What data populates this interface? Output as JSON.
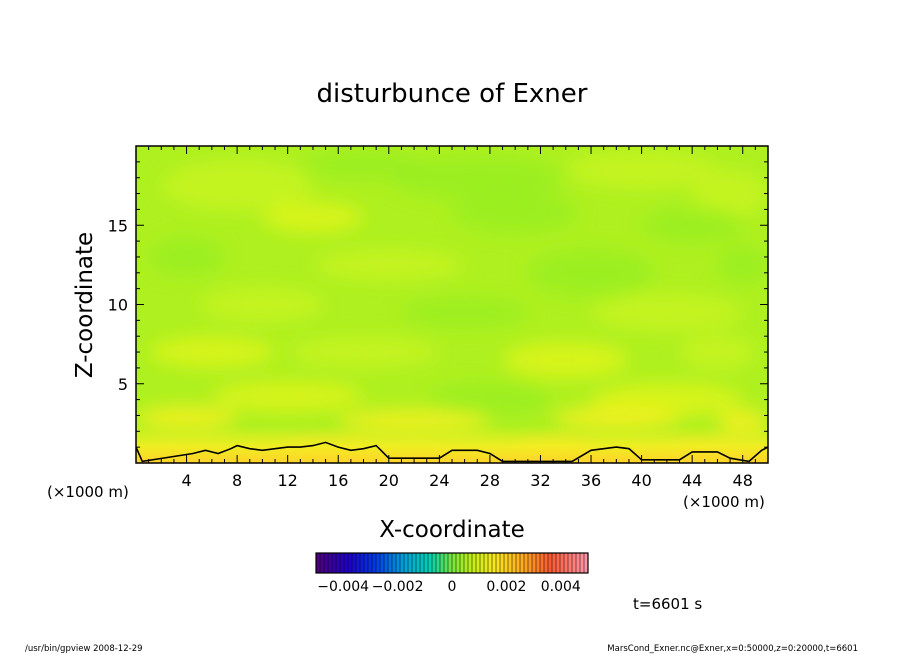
{
  "chart_data": {
    "type": "heatmap",
    "title": "disturbunce of Exner",
    "xlabel": "X-coordinate",
    "ylabel": "Z-coordinate",
    "x_unit": "(×1000 m)",
    "x_unit_left": "(×1000 m)",
    "xlim": [
      0,
      50
    ],
    "ylim": [
      0,
      20
    ],
    "x_ticks": [
      4,
      8,
      12,
      16,
      20,
      24,
      28,
      32,
      36,
      40,
      44,
      48
    ],
    "y_ticks": [
      5,
      10,
      15
    ],
    "zero_contour": {
      "x": [
        0,
        0.5,
        4.5,
        5.5,
        6.5,
        7.5,
        8,
        9,
        10,
        11,
        12,
        13,
        14,
        15,
        16,
        17,
        18,
        19,
        20,
        24,
        25,
        27,
        28,
        29,
        34.5,
        36,
        38,
        39,
        40,
        43,
        44,
        46,
        47,
        48.5,
        49.5,
        50
      ],
      "z": [
        1.0,
        0.1,
        0.6,
        0.8,
        0.6,
        0.9,
        1.1,
        0.9,
        0.8,
        0.9,
        1.0,
        1.0,
        1.1,
        1.3,
        1.0,
        0.8,
        0.9,
        1.1,
        0.3,
        0.3,
        0.8,
        0.8,
        0.6,
        0.1,
        0.1,
        0.8,
        1.0,
        0.9,
        0.2,
        0.2,
        0.7,
        0.7,
        0.3,
        0.1,
        0.8,
        1.0
      ]
    },
    "colorbar": {
      "range": [
        -0.005,
        0.005
      ],
      "tick_labels": [
        "−0.004",
        "−0.002",
        "0",
        "0.002",
        "0.004"
      ],
      "tick_values": [
        -0.004,
        -0.002,
        0,
        0.002,
        0.004
      ]
    },
    "time_label": "t=6601 s",
    "colors": {
      "field_main": "#99ee22",
      "field_light": "#c8f51e",
      "field_yellow": "#ddf516",
      "near_surface": "#f5f020",
      "surface_orange": "#ffd22a"
    }
  },
  "footer": {
    "left": "/usr/bin/gpview   2008-12-29",
    "right": "MarsCond_Exner.nc@Exner,x=0:50000,z=0:20000,t=6601"
  }
}
